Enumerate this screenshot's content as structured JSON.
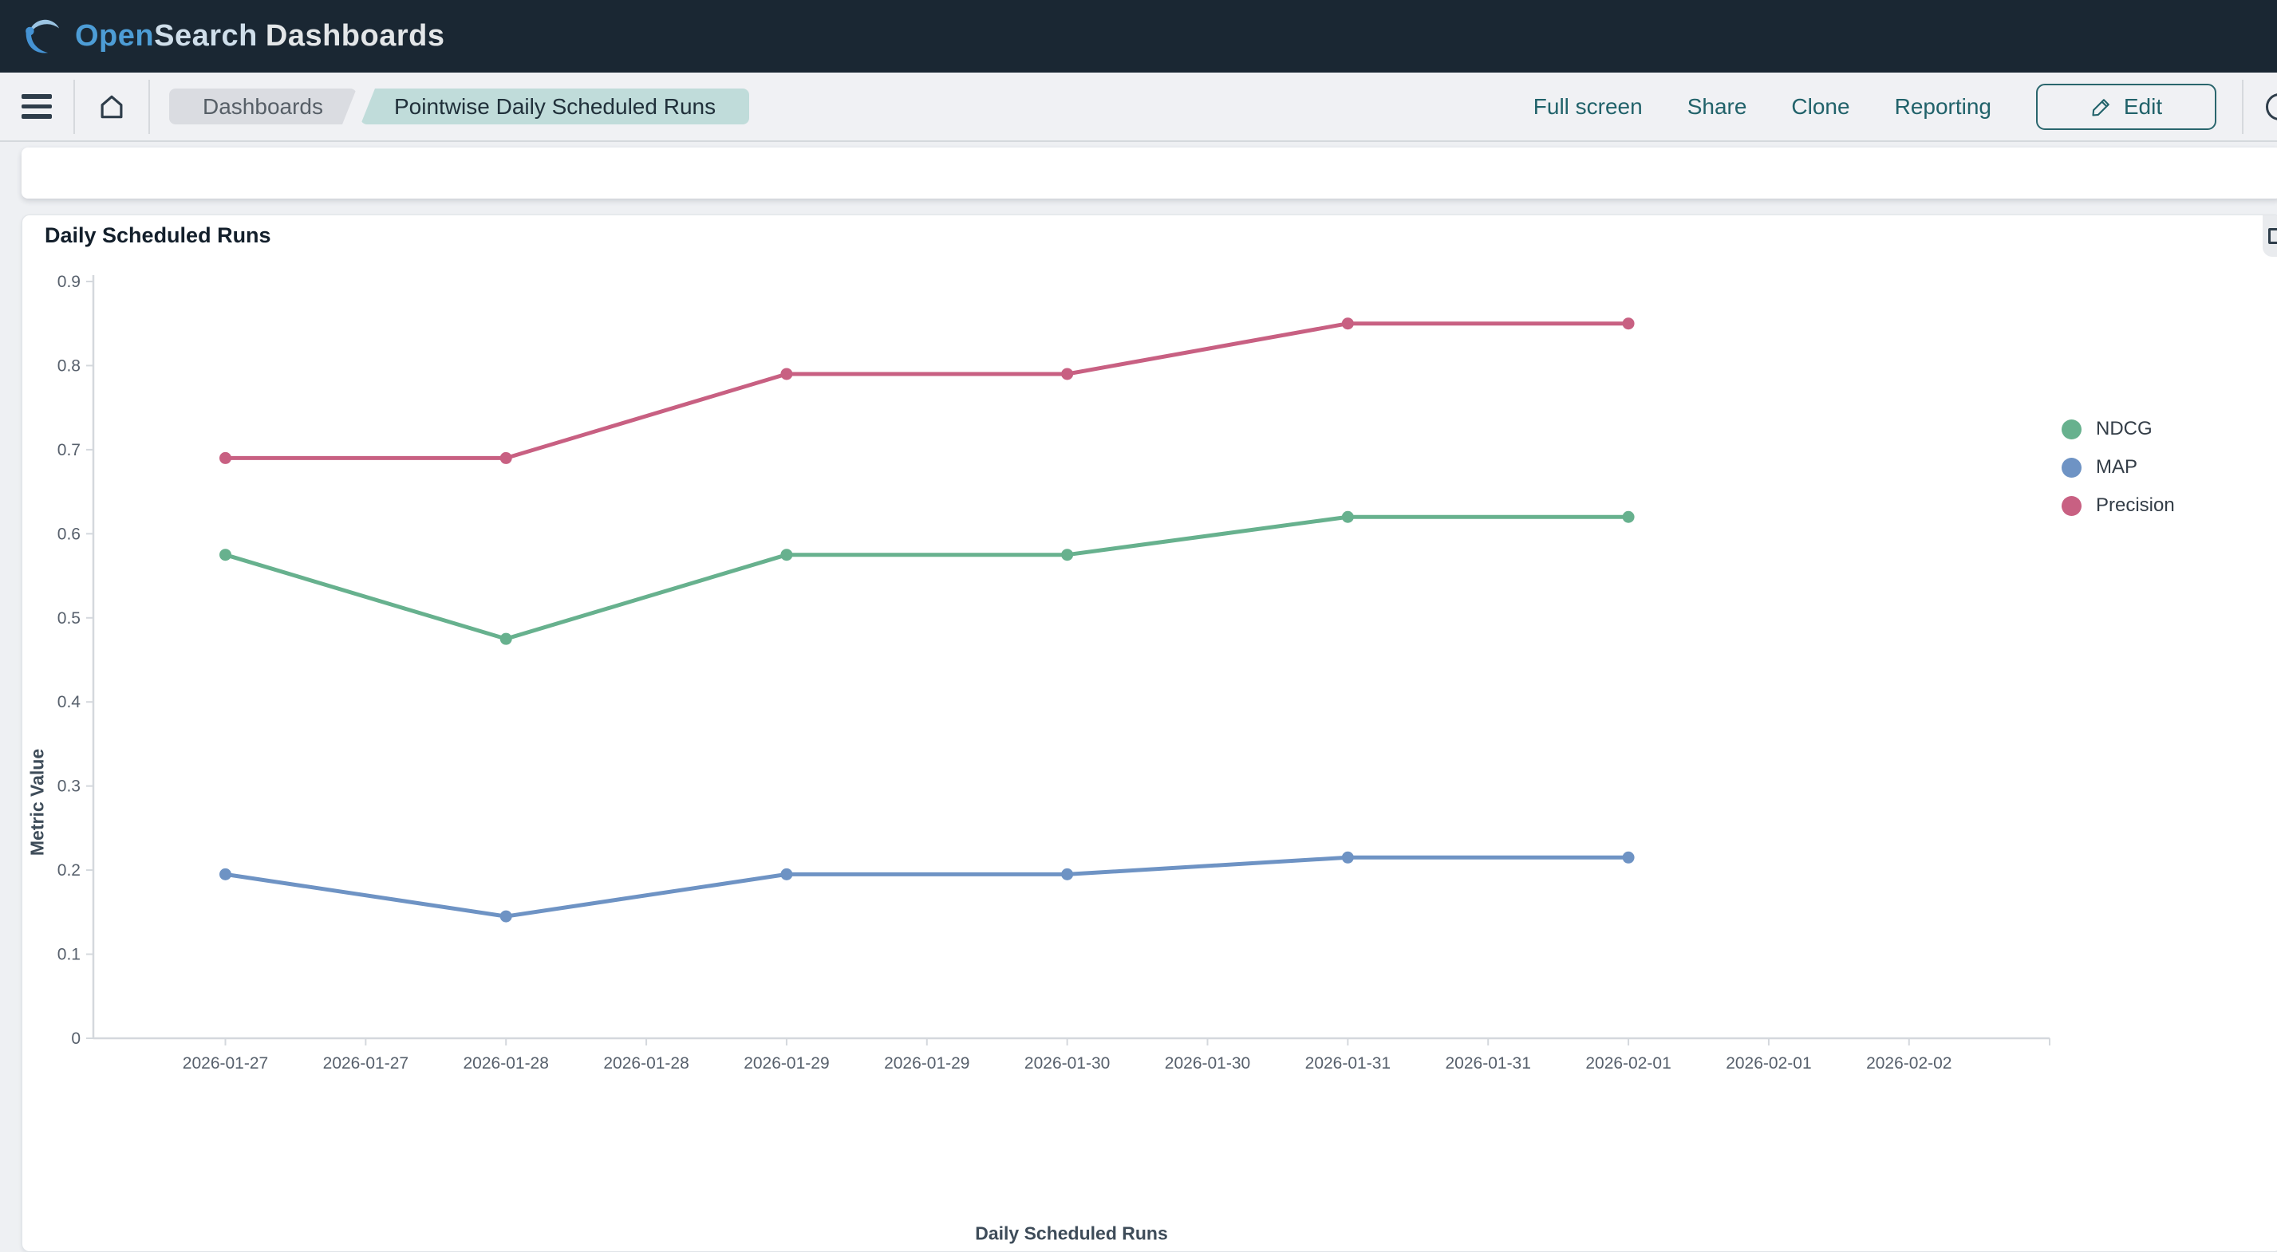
{
  "header": {
    "logo_part1": "Open",
    "logo_part2": "Search",
    "logo_part3": "Dashboards"
  },
  "navbar": {
    "breadcrumbs": [
      {
        "label": "Dashboards",
        "current": false
      },
      {
        "label": "Pointwise Daily Scheduled Runs",
        "current": true
      }
    ],
    "actions": [
      "Full screen",
      "Share",
      "Clone",
      "Reporting"
    ],
    "edit_label": "Edit",
    "icons": {
      "menu": "menu-icon",
      "home": "home-icon",
      "edit": "pencil-icon",
      "time": "clock-icon",
      "panel_action": "panel-box-icon"
    }
  },
  "panel": {
    "title": "Daily Scheduled Runs"
  },
  "chart_data": {
    "type": "line",
    "title": "Daily Scheduled Runs",
    "xlabel": "Daily Scheduled Runs",
    "ylabel": "Metric Value",
    "ylim": [
      0,
      0.9
    ],
    "grid": false,
    "legend_position": "right",
    "y_tick_labels": [
      "0",
      "0.1",
      "0.2",
      "0.3",
      "0.4",
      "0.5",
      "0.6",
      "0.7",
      "0.8",
      "0.9"
    ],
    "y_ticks": [
      0,
      0.1,
      0.2,
      0.3,
      0.4,
      0.5,
      0.6,
      0.7,
      0.8,
      0.9
    ],
    "x_tick_labels": [
      "2026-01-27",
      "2026-01-27",
      "2026-01-28",
      "2026-01-28",
      "2026-01-29",
      "2026-01-29",
      "2026-01-30",
      "2026-01-30",
      "2026-01-31",
      "2026-01-31",
      "2026-02-01",
      "2026-02-01",
      "2026-02-02"
    ],
    "x": [
      "2026-01-27",
      "2026-01-28",
      "2026-01-29",
      "2026-01-30",
      "2026-01-31",
      "2026-02-01"
    ],
    "series": [
      {
        "name": "NDCG",
        "color": "#67b18e",
        "values": [
          0.575,
          0.475,
          0.575,
          0.575,
          0.62,
          0.62
        ]
      },
      {
        "name": "MAP",
        "color": "#6e93c4",
        "values": [
          0.195,
          0.145,
          0.195,
          0.195,
          0.215,
          0.215
        ]
      },
      {
        "name": "Precision",
        "color": "#c86082",
        "values": [
          0.69,
          0.69,
          0.79,
          0.79,
          0.85,
          0.85
        ]
      }
    ]
  },
  "colors": {
    "header_bg": "#1a2733",
    "nav_bg": "#f0f1f4",
    "accent_teal": "#21626a",
    "page_bg": "#eef0f3",
    "panel_bg": "#ffffff",
    "breadcrumb_bg": "#dadce1",
    "breadcrumb_current_bg": "#c0dcda",
    "axis_line": "#d4d8dd",
    "tick_text": "#57606c",
    "logo_blue": "#4d9dd6"
  }
}
